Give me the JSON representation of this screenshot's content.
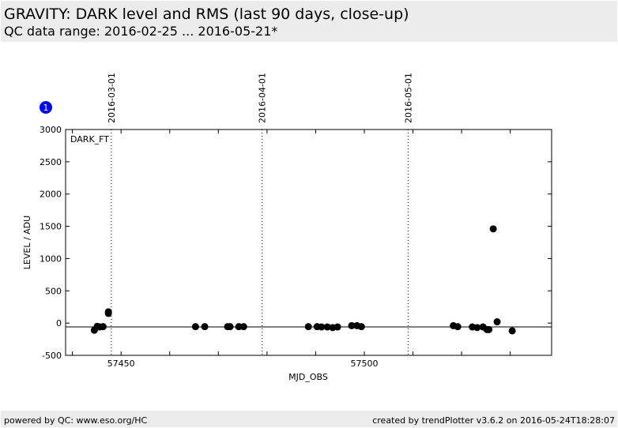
{
  "header": {
    "title": "GRAVITY: DARK level and RMS (last 90 days, close-up)",
    "subtitle": "QC data range: 2016-02-25 ... 2016-05-21*"
  },
  "footer": {
    "left": "powered by QC: www.eso.org/HC",
    "right": "created by trendPlotter v3.6.2 on 2016-05-24T18:28:07"
  },
  "badge": "1",
  "chart_data": {
    "type": "scatter",
    "xlabel": "MJD_OBS",
    "ylabel": "LEVEL / ADU",
    "panel_label": "DARK_FT",
    "xlim": [
      57438.6,
      57538.5
    ],
    "ylim": [
      -500,
      3000
    ],
    "xticks": [
      57450,
      57500
    ],
    "yticks": [
      -500,
      0,
      500,
      1000,
      1500,
      2000,
      2500,
      3000
    ],
    "reference_line": -60,
    "date_markers": [
      {
        "label": "2016-03-01",
        "mjd": 57448
      },
      {
        "label": "2016-04-01",
        "mjd": 57479
      },
      {
        "label": "2016-05-01",
        "mjd": 57509
      }
    ],
    "points": [
      [
        57444.5,
        -110
      ],
      [
        57445.1,
        -50
      ],
      [
        57445.6,
        -60
      ],
      [
        57446.3,
        -55
      ],
      [
        57447.4,
        150
      ],
      [
        57447.4,
        175
      ],
      [
        57465.3,
        -55
      ],
      [
        57467.2,
        -55
      ],
      [
        57471.9,
        -55
      ],
      [
        57472.4,
        -55
      ],
      [
        57474.2,
        -55
      ],
      [
        57475.2,
        -55
      ],
      [
        57488.5,
        -55
      ],
      [
        57490.3,
        -55
      ],
      [
        57491.2,
        -60
      ],
      [
        57492.4,
        -60
      ],
      [
        57493.5,
        -70
      ],
      [
        57494.5,
        -60
      ],
      [
        57497.4,
        -40
      ],
      [
        57498.5,
        -40
      ],
      [
        57499.4,
        -55
      ],
      [
        57518.3,
        -40
      ],
      [
        57519.2,
        -55
      ],
      [
        57522.2,
        -60
      ],
      [
        57523.2,
        -70
      ],
      [
        57524.4,
        -60
      ],
      [
        57525.2,
        -100
      ],
      [
        57525.6,
        -100
      ],
      [
        57526.5,
        1460
      ],
      [
        57527.3,
        20
      ],
      [
        57530.4,
        -120
      ]
    ]
  }
}
